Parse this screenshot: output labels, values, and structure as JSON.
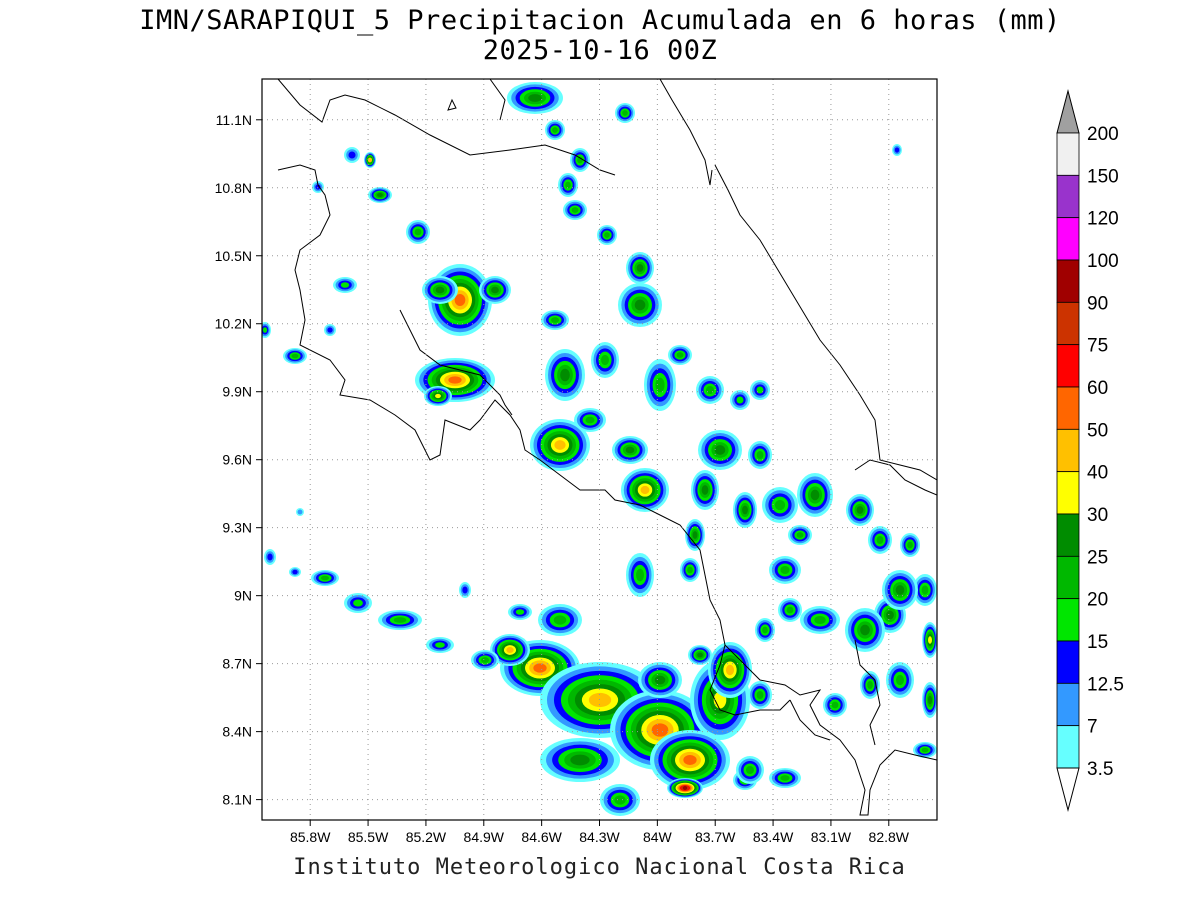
{
  "title": {
    "line1": "IMN/SARAPIQUI_5 Precipitacion Acumulada en 6 horas (mm)",
    "line2": "2025-10-16 00Z"
  },
  "footer": "Instituto Meteorologico Nacional Costa Rica",
  "map": {
    "lon_range": [
      -86.05,
      -82.55
    ],
    "lat_range": [
      8.01,
      11.28
    ],
    "lon_ticks": [
      "85.8W",
      "85.5W",
      "85.2W",
      "84.9W",
      "84.6W",
      "84.3W",
      "84W",
      "83.7W",
      "83.4W",
      "83.1W",
      "82.8W"
    ],
    "lat_ticks": [
      "11.1N",
      "10.8N",
      "10.5N",
      "10.2N",
      "9.9N",
      "9.6N",
      "9.3N",
      "9N",
      "8.7N",
      "8.4N",
      "8.1N"
    ],
    "grid": true
  },
  "colorbar": {
    "labels": [
      "200",
      "150",
      "120",
      "100",
      "90",
      "75",
      "60",
      "50",
      "40",
      "30",
      "25",
      "20",
      "15",
      "12.5",
      "7",
      "3.5"
    ],
    "colors": {
      "over": "#a0a0a0",
      "b150_200": "#f0f0f0",
      "b120_150": "#9933cc",
      "b100_120": "#ff00ff",
      "b90_100": "#a00000",
      "b75_90": "#cc3300",
      "b60_75": "#ff0000",
      "b50_60": "#ff6600",
      "b40_50": "#ffc000",
      "b30_40": "#ffff00",
      "b25_30": "#008c00",
      "b20_25": "#00b800",
      "b15_20": "#00e600",
      "b12_15": "#0000ff",
      "b7_12": "#3399ff",
      "b3_7": "#66ffff"
    }
  }
}
